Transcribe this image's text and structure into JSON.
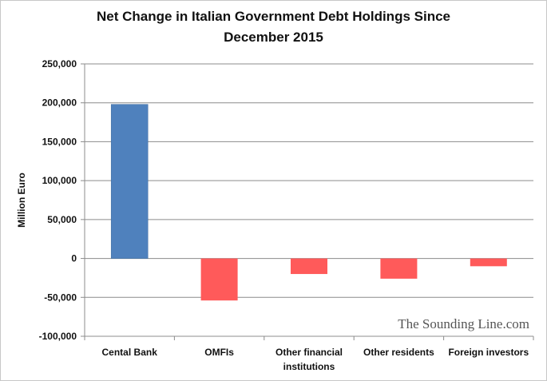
{
  "chart_data": {
    "type": "bar",
    "title_lines": [
      "Net Change in Italian Government Debt Holdings Since",
      "December 2015"
    ],
    "ylabel": "Million Euro",
    "xlabel": "",
    "categories": [
      {
        "label_lines": [
          "Cental Bank"
        ]
      },
      {
        "label_lines": [
          "OMFIs"
        ]
      },
      {
        "label_lines": [
          "Other financial",
          "institutions"
        ]
      },
      {
        "label_lines": [
          "Other residents"
        ]
      },
      {
        "label_lines": [
          "Foreign investors"
        ]
      }
    ],
    "values": [
      198000,
      -54000,
      -20000,
      -26000,
      -10000
    ],
    "colors": [
      "#4f81bd",
      "#ff5a5a",
      "#ff5a5a",
      "#ff5a5a",
      "#ff5a5a"
    ],
    "ylim": [
      -100000,
      250000
    ],
    "yticks": [
      250000,
      200000,
      150000,
      100000,
      50000,
      0,
      -50000,
      -100000
    ],
    "ytick_labels": [
      "250,000",
      "200,000",
      "150,000",
      "100,000",
      "50,000",
      "0",
      "-50,000",
      "-100,000"
    ],
    "grid": true,
    "legend": "none"
  },
  "watermark": "The Sounding Line.com"
}
